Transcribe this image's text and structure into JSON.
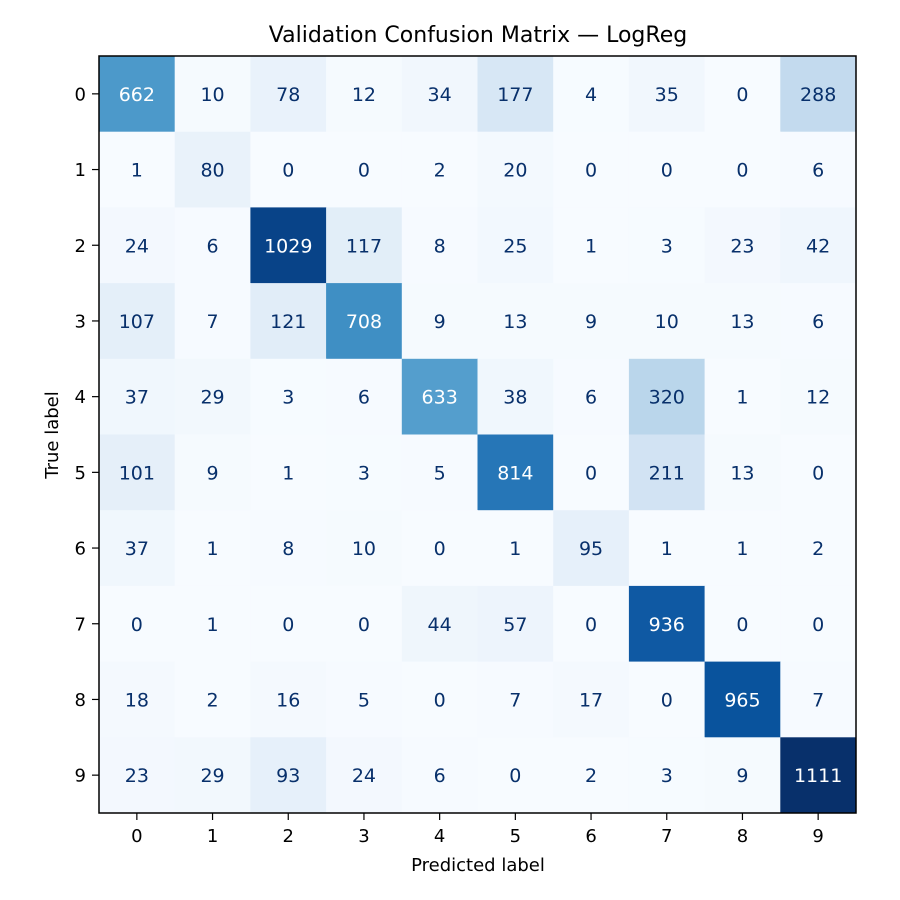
{
  "chart_data": {
    "type": "heatmap",
    "title": "Validation Confusion Matrix — LogReg",
    "xlabel": "Predicted label",
    "ylabel": "True label",
    "x_categories": [
      "0",
      "1",
      "2",
      "3",
      "4",
      "5",
      "6",
      "7",
      "8",
      "9"
    ],
    "y_categories": [
      "0",
      "1",
      "2",
      "3",
      "4",
      "5",
      "6",
      "7",
      "8",
      "9"
    ],
    "values": [
      [
        662,
        10,
        78,
        12,
        34,
        177,
        4,
        35,
        0,
        288
      ],
      [
        1,
        80,
        0,
        0,
        2,
        20,
        0,
        0,
        0,
        6
      ],
      [
        24,
        6,
        1029,
        117,
        8,
        25,
        1,
        3,
        23,
        42
      ],
      [
        107,
        7,
        121,
        708,
        9,
        13,
        9,
        10,
        13,
        6
      ],
      [
        37,
        29,
        3,
        6,
        633,
        38,
        6,
        320,
        1,
        12
      ],
      [
        101,
        9,
        1,
        3,
        5,
        814,
        0,
        211,
        13,
        0
      ],
      [
        37,
        1,
        8,
        10,
        0,
        1,
        95,
        1,
        1,
        2
      ],
      [
        0,
        1,
        0,
        0,
        44,
        57,
        0,
        936,
        0,
        0
      ],
      [
        18,
        2,
        16,
        5,
        0,
        7,
        17,
        0,
        965,
        7
      ],
      [
        23,
        29,
        93,
        24,
        6,
        0,
        2,
        3,
        9,
        1111
      ]
    ],
    "vmin": 0,
    "vmax": 1111,
    "colormap": "Blues",
    "colorbar": false,
    "grid": false,
    "text_color_light": "#ffffff",
    "text_color_dark": "#08306b"
  }
}
